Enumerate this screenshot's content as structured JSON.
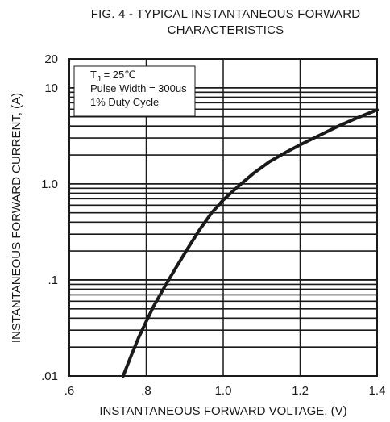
{
  "chart_data": {
    "type": "line",
    "title_lines": [
      "FIG. 4 - TYPICAL INSTANTANEOUS FORWARD",
      "CHARACTERISTICS"
    ],
    "xlabel": "INSTANTANEOUS FORWARD VOLTAGE, (V)",
    "ylabel": "INSTANTANEOUS FORWARD CURRENT, (A)",
    "xlim": [
      0.6,
      1.4
    ],
    "ylim": [
      0.01,
      20
    ],
    "yscale": "log",
    "grid": true,
    "x_ticks": [
      {
        "value": 0.6,
        "label": ".6"
      },
      {
        "value": 0.8,
        "label": ".8"
      },
      {
        "value": 1.0,
        "label": "1.0"
      },
      {
        "value": 1.2,
        "label": "1.2"
      },
      {
        "value": 1.4,
        "label": "1.4"
      }
    ],
    "y_ticks": [
      {
        "value": 0.01,
        "label": ".01"
      },
      {
        "value": 0.1,
        "label": ".1"
      },
      {
        "value": 1.0,
        "label": "1.0"
      },
      {
        "value": 10,
        "label": "10"
      },
      {
        "value": 20,
        "label": "20"
      }
    ],
    "annotation_lines": [
      {
        "main": "T",
        "sub": "J",
        "rest": " = 25℃"
      },
      {
        "main": "Pulse Width = 300us",
        "sub": "",
        "rest": ""
      },
      {
        "main": "1% Duty Cycle",
        "sub": "",
        "rest": ""
      }
    ],
    "series": [
      {
        "x": [
          0.74,
          0.76,
          0.78,
          0.8,
          0.82,
          0.85,
          0.88,
          0.91,
          0.94,
          0.97,
          1.0,
          1.04,
          1.08,
          1.12,
          1.16,
          1.2,
          1.25,
          1.3,
          1.35,
          1.4
        ],
        "y": [
          0.01,
          0.016,
          0.025,
          0.037,
          0.054,
          0.088,
          0.14,
          0.22,
          0.34,
          0.5,
          0.68,
          0.95,
          1.3,
          1.7,
          2.1,
          2.55,
          3.2,
          4.0,
          4.9,
          5.9
        ]
      }
    ]
  }
}
